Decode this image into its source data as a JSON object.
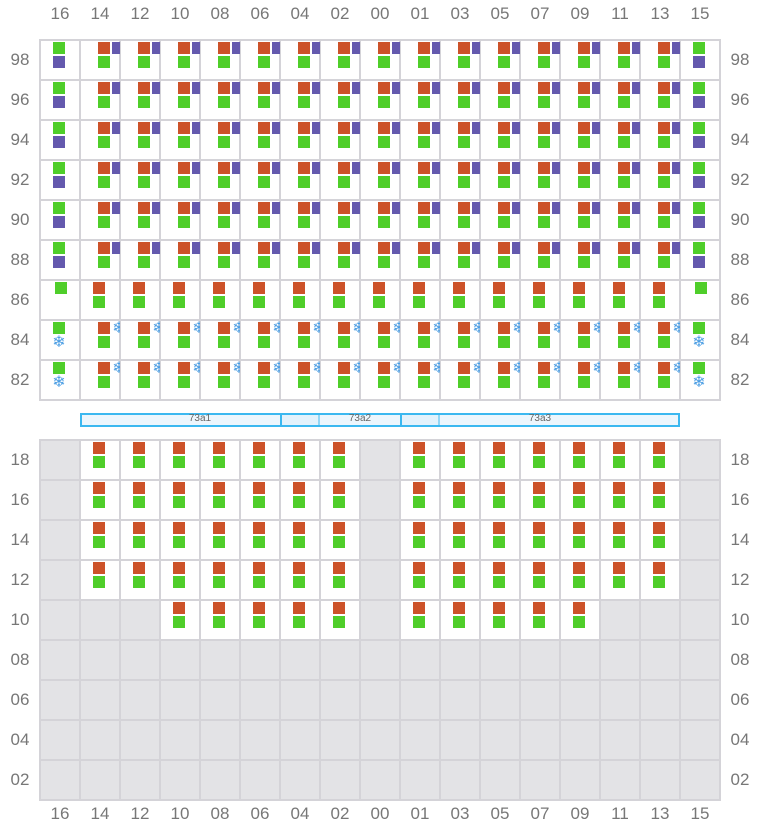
{
  "columns": [
    "16",
    "14",
    "12",
    "10",
    "08",
    "06",
    "04",
    "02",
    "00",
    "01",
    "03",
    "05",
    "07",
    "09",
    "11",
    "13",
    "15"
  ],
  "colors": {
    "orange": "#cc5229",
    "purple": "#6459ae",
    "green": "#4fce2a",
    "snowflake": "#4a9de3",
    "empty": "#e3e3e6",
    "bar": "#3bb8f0"
  },
  "legend_codes": {
    "opg": "orange+purple+green",
    "gp": "green+purple",
    "og": "orange+green",
    "g": "green",
    "osg": "orange+snowflake-icon+green",
    "gs": "green+snowflake-icon",
    "x": "empty"
  },
  "top_rows": [
    {
      "label": "98",
      "cells": [
        "gp",
        "opg",
        "opg",
        "opg",
        "opg",
        "opg",
        "opg",
        "opg",
        "opg",
        "opg",
        "opg",
        "opg",
        "opg",
        "opg",
        "opg",
        "opg",
        "gp"
      ]
    },
    {
      "label": "96",
      "cells": [
        "gp",
        "opg",
        "opg",
        "opg",
        "opg",
        "opg",
        "opg",
        "opg",
        "opg",
        "opg",
        "opg",
        "opg",
        "opg",
        "opg",
        "opg",
        "opg",
        "gp"
      ]
    },
    {
      "label": "94",
      "cells": [
        "gp",
        "opg",
        "opg",
        "opg",
        "opg",
        "opg",
        "opg",
        "opg",
        "opg",
        "opg",
        "opg",
        "opg",
        "opg",
        "opg",
        "opg",
        "opg",
        "gp"
      ]
    },
    {
      "label": "92",
      "cells": [
        "gp",
        "opg",
        "opg",
        "opg",
        "opg",
        "opg",
        "opg",
        "opg",
        "opg",
        "opg",
        "opg",
        "opg",
        "opg",
        "opg",
        "opg",
        "opg",
        "gp"
      ]
    },
    {
      "label": "90",
      "cells": [
        "gp",
        "opg",
        "opg",
        "opg",
        "opg",
        "opg",
        "opg",
        "opg",
        "opg",
        "opg",
        "opg",
        "opg",
        "opg",
        "opg",
        "opg",
        "opg",
        "gp"
      ]
    },
    {
      "label": "88",
      "cells": [
        "gp",
        "opg",
        "opg",
        "opg",
        "opg",
        "opg",
        "opg",
        "opg",
        "opg",
        "opg",
        "opg",
        "opg",
        "opg",
        "opg",
        "opg",
        "opg",
        "gp"
      ]
    },
    {
      "label": "86",
      "cells": [
        "g",
        "og",
        "og",
        "og",
        "og",
        "og",
        "og",
        "og",
        "og",
        "og",
        "og",
        "og",
        "og",
        "og",
        "og",
        "og",
        "g"
      ]
    },
    {
      "label": "84",
      "cells": [
        "gs",
        "osg",
        "osg",
        "osg",
        "osg",
        "osg",
        "osg",
        "osg",
        "osg",
        "osg",
        "osg",
        "osg",
        "osg",
        "osg",
        "osg",
        "osg",
        "gs"
      ]
    },
    {
      "label": "82",
      "cells": [
        "gs",
        "osg",
        "osg",
        "osg",
        "osg",
        "osg",
        "osg",
        "osg",
        "osg",
        "osg",
        "osg",
        "osg",
        "osg",
        "osg",
        "osg",
        "osg",
        "gs"
      ]
    }
  ],
  "bottom_rows": [
    {
      "label": "18",
      "cells": [
        "x",
        "og",
        "og",
        "og",
        "og",
        "og",
        "og",
        "og",
        "x",
        "og",
        "og",
        "og",
        "og",
        "og",
        "og",
        "og",
        "x"
      ]
    },
    {
      "label": "16",
      "cells": [
        "x",
        "og",
        "og",
        "og",
        "og",
        "og",
        "og",
        "og",
        "x",
        "og",
        "og",
        "og",
        "og",
        "og",
        "og",
        "og",
        "x"
      ]
    },
    {
      "label": "14",
      "cells": [
        "x",
        "og",
        "og",
        "og",
        "og",
        "og",
        "og",
        "og",
        "x",
        "og",
        "og",
        "og",
        "og",
        "og",
        "og",
        "og",
        "x"
      ]
    },
    {
      "label": "12",
      "cells": [
        "x",
        "og",
        "og",
        "og",
        "og",
        "og",
        "og",
        "og",
        "x",
        "og",
        "og",
        "og",
        "og",
        "og",
        "og",
        "og",
        "x"
      ]
    },
    {
      "label": "10",
      "cells": [
        "x",
        "x",
        "x",
        "og",
        "og",
        "og",
        "og",
        "og",
        "x",
        "og",
        "og",
        "og",
        "og",
        "og",
        "x",
        "x",
        "x"
      ]
    },
    {
      "label": "08",
      "cells": [
        "x",
        "x",
        "x",
        "x",
        "x",
        "x",
        "x",
        "x",
        "x",
        "x",
        "x",
        "x",
        "x",
        "x",
        "x",
        "x",
        "x"
      ]
    },
    {
      "label": "06",
      "cells": [
        "x",
        "x",
        "x",
        "x",
        "x",
        "x",
        "x",
        "x",
        "x",
        "x",
        "x",
        "x",
        "x",
        "x",
        "x",
        "x",
        "x"
      ]
    },
    {
      "label": "04",
      "cells": [
        "x",
        "x",
        "x",
        "x",
        "x",
        "x",
        "x",
        "x",
        "x",
        "x",
        "x",
        "x",
        "x",
        "x",
        "x",
        "x",
        "x"
      ]
    },
    {
      "label": "02",
      "cells": [
        "x",
        "x",
        "x",
        "x",
        "x",
        "x",
        "x",
        "x",
        "x",
        "x",
        "x",
        "x",
        "x",
        "x",
        "x",
        "x",
        "x"
      ]
    }
  ],
  "bars": [
    {
      "label": "73a1",
      "from": "14",
      "to": "04"
    },
    {
      "label": "73a2",
      "from": "04",
      "to": "01"
    },
    {
      "label": "73a3",
      "from": "01",
      "to": "13"
    }
  ]
}
